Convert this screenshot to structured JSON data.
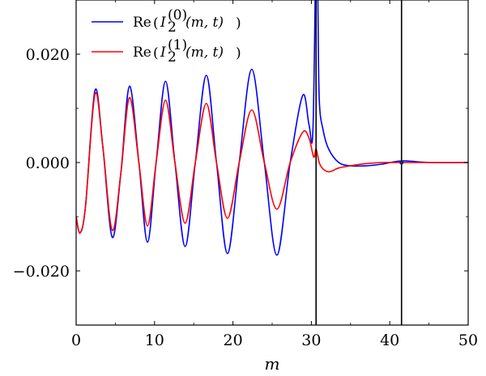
{
  "chart_data": {
    "type": "line",
    "xlabel": "m",
    "ylabel": "",
    "xlim": [
      0,
      50
    ],
    "ylim": [
      -0.03,
      0.03
    ],
    "x_ticks": [
      0,
      10,
      20,
      30,
      40,
      50
    ],
    "x_tick_labels": [
      "0",
      "10",
      "20",
      "30",
      "40",
      "50"
    ],
    "y_ticks": [
      -0.02,
      0.0,
      0.02
    ],
    "y_tick_labels": [
      "−0.020",
      "0.000",
      "0.020"
    ],
    "grid": false,
    "legend_position": "top-left",
    "vertical_lines": [
      30.6,
      41.5
    ],
    "series": [
      {
        "name": "Re (I₂⁽⁰⁾(m, t))",
        "legend": {
          "main": "Re",
          "open": "(",
          "var": "I",
          "sub": "2",
          "sup": "(0)",
          "args": "(m, t)",
          "close": ")"
        },
        "color": "#0000ff",
        "points": [
          [
            0,
            -0.01
          ],
          [
            0.5,
            -0.013
          ],
          [
            1.2,
            -0.008
          ],
          [
            2.4,
            0.0133
          ],
          [
            3.4,
            0.003
          ],
          [
            4.6,
            -0.0138
          ],
          [
            5.7,
            -0.002
          ],
          [
            6.8,
            0.0141
          ],
          [
            8.0,
            0.0
          ],
          [
            9.1,
            -0.0147
          ],
          [
            10.2,
            0.0
          ],
          [
            11.4,
            0.015
          ],
          [
            12.6,
            0.0
          ],
          [
            13.9,
            -0.0155
          ],
          [
            15.2,
            0.0
          ],
          [
            16.6,
            0.0161
          ],
          [
            17.9,
            0.0
          ],
          [
            19.3,
            -0.0168
          ],
          [
            20.8,
            0.0
          ],
          [
            22.4,
            0.0172
          ],
          [
            24.0,
            0.0
          ],
          [
            25.6,
            -0.0171
          ],
          [
            27.3,
            0.0
          ],
          [
            28.9,
            0.0124
          ],
          [
            29.7,
            0.007
          ],
          [
            30.2,
            0.006
          ],
          [
            30.6,
            0.04
          ],
          [
            30.8,
            0.033
          ],
          [
            31.0,
            0.012
          ],
          [
            31.5,
            0.006
          ],
          [
            32.2,
            0.0025
          ],
          [
            33.5,
            0.0
          ],
          [
            35.0,
            -0.0006
          ],
          [
            37.0,
            -0.0006
          ],
          [
            39.0,
            -0.0003
          ],
          [
            41.5,
            0.0003
          ],
          [
            45.0,
            0.0
          ],
          [
            50.0,
            0.0
          ]
        ]
      },
      {
        "name": "Re (I₂⁽¹⁾(m, t))",
        "legend": {
          "main": "Re",
          "open": "(",
          "var": "I",
          "sub": "2",
          "sup": "(1)",
          "args": "(m, t)",
          "close": ")"
        },
        "color": "#ff0000",
        "points": [
          [
            0,
            -0.01
          ],
          [
            0.5,
            -0.013
          ],
          [
            1.2,
            -0.008
          ],
          [
            2.4,
            0.0126
          ],
          [
            3.4,
            0.003
          ],
          [
            4.6,
            -0.0125
          ],
          [
            5.7,
            -0.002
          ],
          [
            6.8,
            0.012
          ],
          [
            8.0,
            0.0
          ],
          [
            9.1,
            -0.0117
          ],
          [
            10.2,
            0.0
          ],
          [
            11.4,
            0.0115
          ],
          [
            12.6,
            0.0
          ],
          [
            13.9,
            -0.0112
          ],
          [
            15.2,
            0.0
          ],
          [
            16.6,
            0.0109
          ],
          [
            17.9,
            0.0
          ],
          [
            19.3,
            -0.0103
          ],
          [
            20.8,
            0.0
          ],
          [
            22.4,
            0.0097
          ],
          [
            24.0,
            0.0
          ],
          [
            25.6,
            -0.0086
          ],
          [
            27.3,
            0.0
          ],
          [
            28.9,
            0.0056
          ],
          [
            29.7,
            0.0045
          ],
          [
            30.3,
            0.001
          ],
          [
            30.6,
            0.0025
          ],
          [
            31.0,
            0.0
          ],
          [
            31.5,
            -0.0012
          ],
          [
            32.3,
            -0.0017
          ],
          [
            33.5,
            -0.001
          ],
          [
            35.0,
            -0.0006
          ],
          [
            37.0,
            -0.0002
          ],
          [
            39.0,
            0.0
          ],
          [
            41.5,
            0.0
          ],
          [
            50.0,
            0.0
          ]
        ]
      }
    ]
  }
}
